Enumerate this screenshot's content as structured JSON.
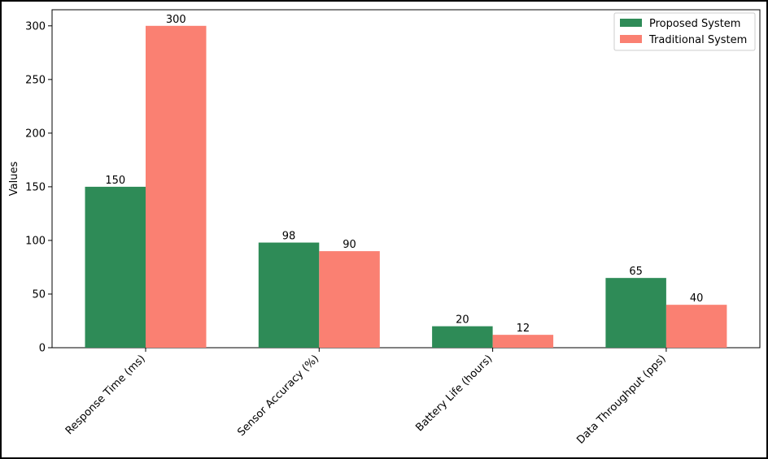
{
  "chart_data": {
    "type": "bar",
    "categories": [
      "Response Time (ms)",
      "Sensor Accuracy (%)",
      "Battery Life (hours)",
      "Data Throughput (pps)"
    ],
    "series": [
      {
        "name": "Proposed System",
        "values": [
          150,
          98,
          20,
          65
        ],
        "color": "#2e8b57"
      },
      {
        "name": "Traditional System",
        "values": [
          300,
          90,
          12,
          40
        ],
        "color": "#fa8072"
      }
    ],
    "title": "",
    "xlabel": "",
    "ylabel": "Values",
    "ylim": [
      0,
      315
    ],
    "yticks": [
      0,
      50,
      100,
      150,
      200,
      250,
      300
    ],
    "legend_position": "top-right",
    "grid": false
  }
}
